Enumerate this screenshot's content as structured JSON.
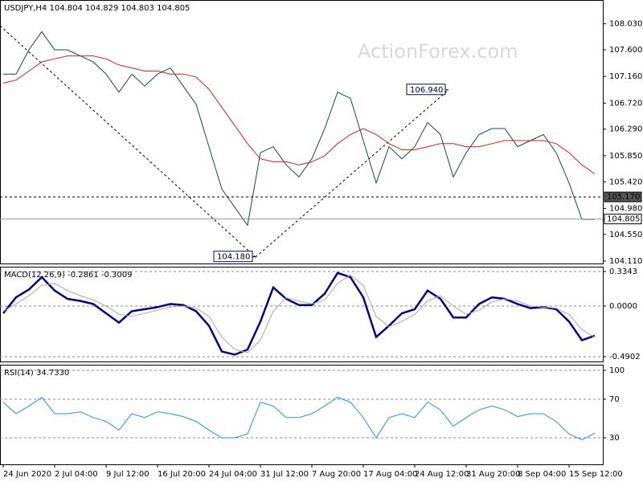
{
  "chart_data": [
    {
      "type": "line",
      "title": "USDJPY,H4  104.804 104.829 104.803 104.805",
      "watermark": "ActionForex.com",
      "ylim": [
        104.07,
        108.41
      ],
      "yticks": [
        {
          "value": 108.03,
          "label": "108.030"
        },
        {
          "value": 107.6,
          "label": "107.600"
        },
        {
          "value": 107.16,
          "label": "107.160"
        },
        {
          "value": 106.72,
          "label": "106.720"
        },
        {
          "value": 106.29,
          "label": "106.290"
        },
        {
          "value": 105.85,
          "label": "105.850"
        },
        {
          "value": 105.42,
          "label": "105.420"
        },
        {
          "value": 104.98,
          "label": "104.980"
        },
        {
          "value": 104.55,
          "label": "104.550"
        },
        {
          "value": 104.11,
          "label": "104.110"
        }
      ],
      "grid": false,
      "series": [
        {
          "color": "#0b4f3a",
          "values": [
            107.2,
            107.2,
            107.6,
            107.9,
            107.6,
            107.6,
            107.5,
            107.4,
            107.2,
            106.9,
            107.2,
            107.0,
            107.2,
            107.3,
            107.0,
            106.7,
            106.0,
            105.3,
            105.0,
            104.7,
            105.9,
            106.0,
            105.7,
            105.5,
            105.8,
            106.3,
            106.9,
            106.8,
            106.1,
            105.4,
            106.0,
            105.8,
            106.0,
            106.4,
            106.2,
            105.5,
            105.9,
            106.2,
            106.3,
            106.3,
            106.0,
            106.1,
            106.2,
            105.9,
            105.4,
            104.8,
            104.8
          ]
        },
        {
          "color": "#e0191e",
          "values": [
            107.05,
            107.1,
            107.25,
            107.4,
            107.45,
            107.5,
            107.5,
            107.5,
            107.45,
            107.35,
            107.3,
            107.25,
            107.25,
            107.2,
            107.2,
            107.15,
            106.95,
            106.65,
            106.35,
            106.05,
            105.8,
            105.75,
            105.75,
            105.7,
            105.75,
            105.85,
            106.05,
            106.2,
            106.3,
            106.2,
            106.05,
            105.95,
            105.95,
            106.0,
            106.05,
            106.05,
            106.0,
            106.0,
            106.05,
            106.1,
            106.1,
            106.1,
            106.1,
            106.05,
            105.9,
            105.7,
            105.55
          ]
        }
      ],
      "hlines": [
        {
          "value": 105.17,
          "label": "105.170",
          "style": "dashed"
        },
        {
          "value": 104.805,
          "label": "104.805",
          "style": "solid"
        }
      ],
      "annotations": [
        {
          "value": 106.94,
          "label": "106.940"
        },
        {
          "value": 104.18,
          "label": "104.180"
        }
      ]
    },
    {
      "type": "line",
      "title": "MACD(12,26,9) -0.2861 -0.3009",
      "ylim": [
        -0.536,
        0.373
      ],
      "yticks": [
        0.3343,
        {
          "value": 0,
          "label": "0.0000"
        },
        -0.4902
      ],
      "grid": true,
      "series": [
        {
          "color": "#00008b",
          "values": [
            -0.07,
            0.085,
            0.16,
            0.28,
            0.15,
            0.07,
            0.05,
            0.02,
            -0.07,
            -0.16,
            -0.05,
            -0.03,
            -0.01,
            0.02,
            0.01,
            -0.05,
            -0.19,
            -0.44,
            -0.47,
            -0.42,
            -0.15,
            0.18,
            0.07,
            0.01,
            0.01,
            0.12,
            0.32,
            0.28,
            0.085,
            -0.3,
            -0.19,
            -0.07,
            -0.03,
            0.15,
            0.07,
            -0.11,
            -0.11,
            0.02,
            0.085,
            0.07,
            0.02,
            -0.02,
            -0.01,
            -0.03,
            -0.15,
            -0.33,
            -0.2861
          ]
        },
        {
          "color": "#a9a9a9",
          "values": [
            -0.05,
            0.02,
            0.1,
            0.2,
            0.22,
            0.15,
            0.1,
            0.06,
            0.0,
            -0.08,
            -0.1,
            -0.07,
            -0.04,
            -0.01,
            0.0,
            -0.02,
            -0.1,
            -0.3,
            -0.42,
            -0.45,
            -0.33,
            -0.05,
            0.08,
            0.05,
            0.02,
            0.06,
            0.22,
            0.3,
            0.2,
            -0.1,
            -0.2,
            -0.15,
            -0.08,
            0.05,
            0.1,
            0.0,
            -0.08,
            -0.04,
            0.04,
            0.07,
            0.05,
            0.0,
            -0.01,
            -0.02,
            -0.08,
            -0.23,
            -0.3009
          ]
        }
      ]
    },
    {
      "type": "line",
      "title": "RSI(14) 34.7330",
      "ylim": [
        2.5,
        105
      ],
      "yticks": [
        100,
        70,
        30
      ],
      "grid": true,
      "xlim": [
        -0.25,
        46.625
      ],
      "xticks": [
        {
          "value": 0,
          "label": "24 Jun 2020"
        },
        {
          "value": 4,
          "label": "2 Jul 04:00"
        },
        {
          "value": 8,
          "label": "9 Jul 12:00"
        },
        {
          "value": 12,
          "label": "16 Jul 20:00"
        },
        {
          "value": 16,
          "label": "24 Jul 04:00"
        },
        {
          "value": 20,
          "label": "31 Jul 12:00"
        },
        {
          "value": 24,
          "label": "7 Aug 20:00"
        },
        {
          "value": 28,
          "label": "17 Aug 04:00"
        },
        {
          "value": 32,
          "label": "24 Aug 12:00"
        },
        {
          "value": 36,
          "label": "31 Aug 20:00"
        },
        {
          "value": 40,
          "label": "8 Sep 04:00"
        },
        {
          "value": 44,
          "label": "15 Sep 12:00"
        }
      ],
      "series": [
        {
          "color": "#1e90ff",
          "values": [
            67,
            55,
            63,
            72,
            55,
            55,
            57,
            51,
            47,
            38,
            55,
            51,
            57,
            55,
            52,
            47,
            38,
            30,
            30,
            34,
            67,
            63,
            51,
            51,
            55,
            63,
            72,
            67,
            51,
            30,
            51,
            55,
            51,
            67,
            59,
            42,
            51,
            59,
            63,
            59,
            52,
            55,
            55,
            47,
            34,
            28,
            34.733
          ]
        }
      ]
    }
  ]
}
